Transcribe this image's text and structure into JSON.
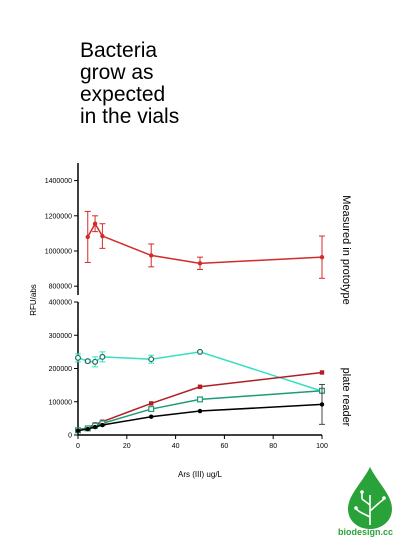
{
  "slide": {
    "title_lines": [
      "Bacteria",
      "grow as",
      "expected",
      "in the vials"
    ]
  },
  "logo": {
    "text": "biodesign.cc",
    "color": "#2aa23a"
  },
  "colors": {
    "red": "#d42a2a",
    "darkred": "#b21e24",
    "cyan": "#33e0c0",
    "green": "#1e9a78",
    "black": "#000000",
    "gray": "#444444"
  },
  "chart_data": [
    {
      "type": "line",
      "panel": "top",
      "ylim": [
        750000,
        1500000
      ],
      "xlim": [
        0,
        100
      ],
      "yticks": [
        800000,
        1000000,
        1200000,
        1400000
      ],
      "yticklabels": [
        "800000",
        "1000000",
        "1200000",
        "1400000"
      ],
      "side_label": "Measured in prototype",
      "series": [
        {
          "color": "#d42a2a",
          "x": [
            4,
            7,
            10,
            30,
            50,
            100
          ],
          "y": [
            1080000,
            1155000,
            1085000,
            975000,
            930000,
            965000
          ],
          "err": [
            145000,
            45000,
            70000,
            65000,
            35000,
            120000
          ]
        }
      ]
    },
    {
      "type": "line",
      "panel": "bottom",
      "ylim": [
        0,
        400000
      ],
      "xlim": [
        0,
        100
      ],
      "yticks": [
        0,
        100000,
        200000,
        300000,
        400000
      ],
      "yticklabels": [
        "0",
        "100000",
        "200000",
        "300000",
        "400000"
      ],
      "xticks": [
        0,
        20,
        40,
        60,
        80,
        100
      ],
      "xticklabels": [
        "0",
        "20",
        "40",
        "60",
        "80",
        "100"
      ],
      "xlabel": "Ars (III) ug/L",
      "ylabel": "RFU/abs",
      "side_label": "plate reader",
      "series": [
        {
          "color": "#33e0c0",
          "marker": "circle-open",
          "x": [
            0,
            4,
            7,
            10,
            30,
            50,
            100
          ],
          "y": [
            232000,
            222000,
            220000,
            235000,
            228000,
            250000,
            132000
          ],
          "err": [
            12000,
            5000,
            15000,
            15000,
            12000,
            0,
            0
          ]
        },
        {
          "color": "#b21e24",
          "marker": "square",
          "x": [
            0,
            4,
            7,
            10,
            30,
            50,
            100
          ],
          "y": [
            15000,
            22000,
            32000,
            40000,
            95000,
            145000,
            188000
          ],
          "err": [
            0,
            0,
            0,
            0,
            0,
            0,
            0
          ]
        },
        {
          "color": "#1e9a78",
          "marker": "square-open",
          "x": [
            0,
            4,
            7,
            10,
            30,
            50,
            100
          ],
          "y": [
            14000,
            20000,
            28000,
            35000,
            78000,
            107000,
            133000
          ],
          "err": [
            0,
            0,
            0,
            0,
            0,
            0,
            0
          ]
        },
        {
          "color": "#000000",
          "marker": "circle",
          "x": [
            0,
            4,
            7,
            10,
            30,
            50,
            100
          ],
          "y": [
            13000,
            18000,
            24000,
            30000,
            55000,
            72000,
            92000
          ],
          "err": [
            0,
            0,
            0,
            0,
            0,
            0,
            60000
          ]
        }
      ]
    }
  ]
}
